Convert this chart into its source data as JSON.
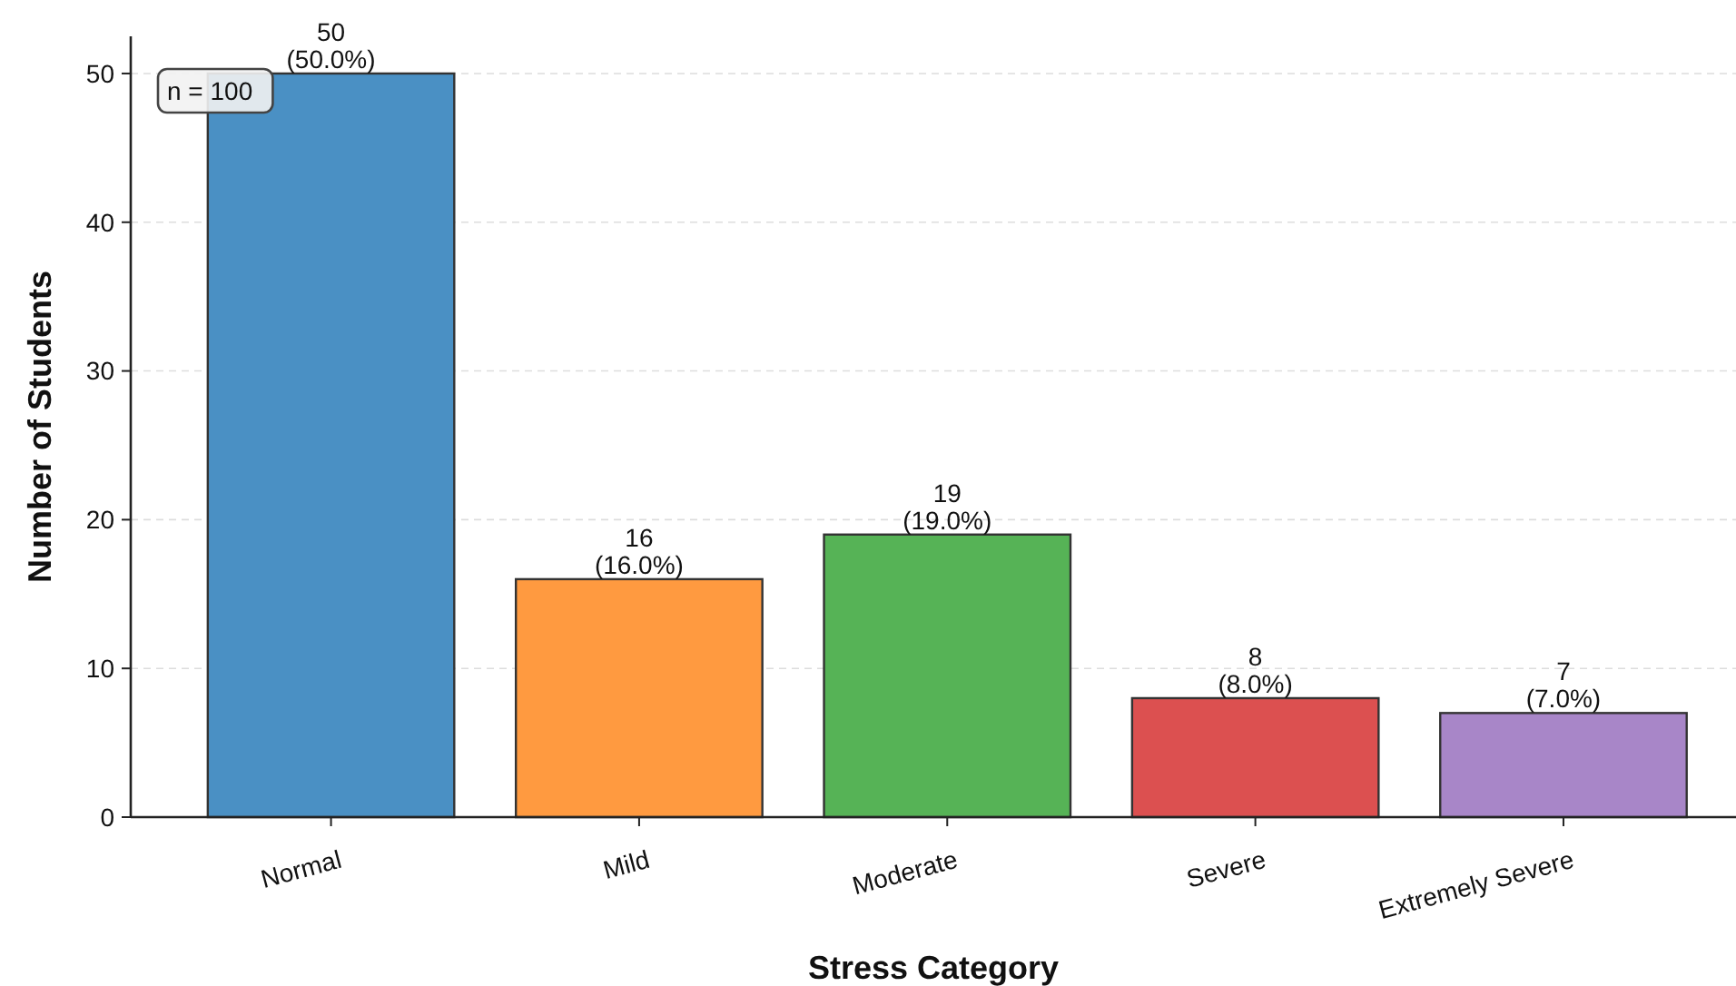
{
  "chart_data": {
    "type": "bar",
    "xlabel": "Stress Category",
    "ylabel": "Number of Students",
    "categories": [
      "Normal",
      "Mild",
      "Moderate",
      "Severe",
      "Extremely Severe"
    ],
    "values": [
      50,
      16,
      19,
      8,
      7
    ],
    "colors": [
      "#4a90c4",
      "#ff9a40",
      "#56b356",
      "#dc5050",
      "#a886c8"
    ],
    "value_labels": [
      "50\n(50.0%)",
      "16\n(16.0%)",
      "19\n(19.0%)",
      "8\n(8.0%)",
      "7\n(7.0%)"
    ],
    "ylim": [
      0,
      52.5
    ],
    "yticks": [
      0,
      10,
      20,
      30,
      40,
      50
    ],
    "grid": "y",
    "annotations": [
      "n = 100"
    ]
  }
}
